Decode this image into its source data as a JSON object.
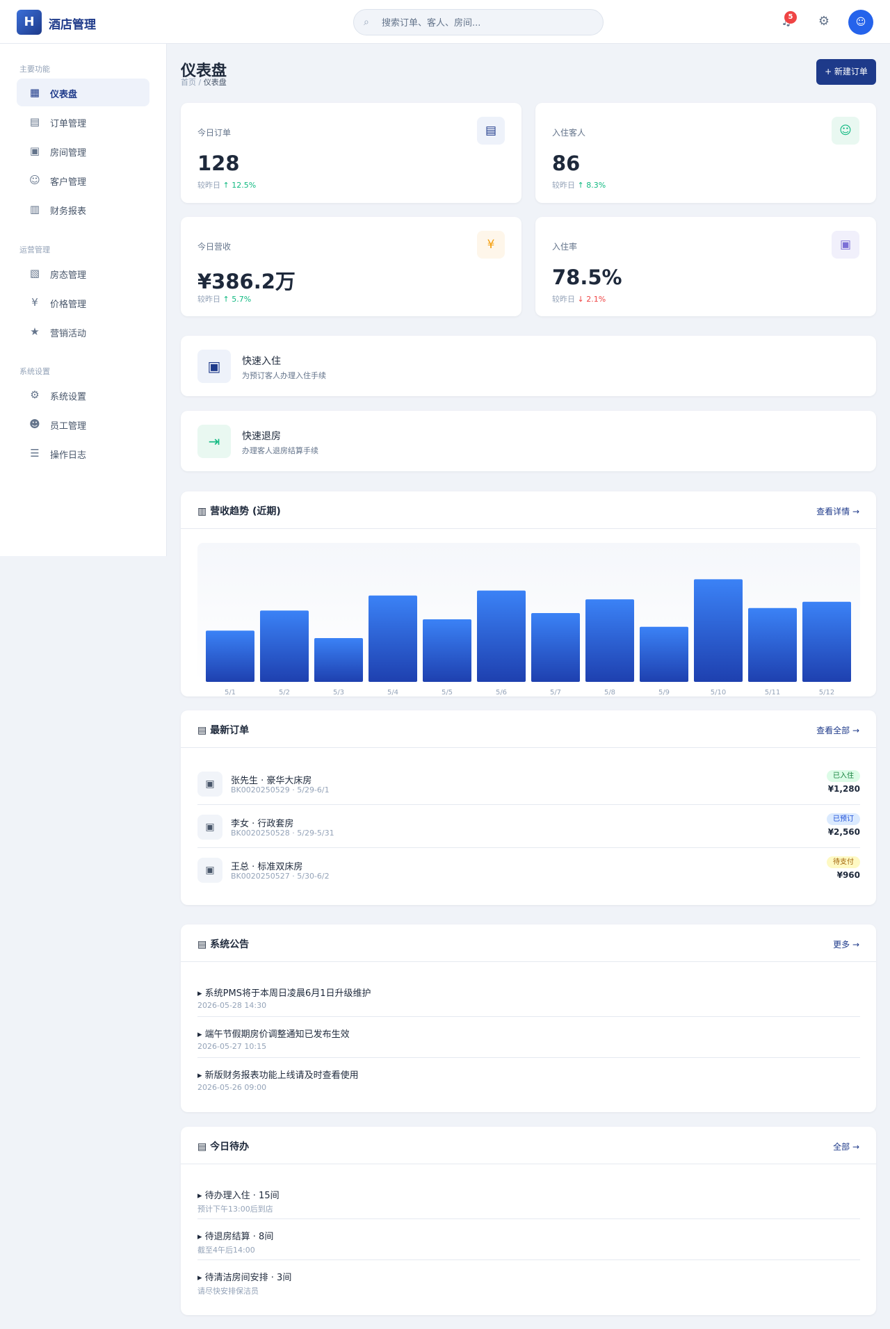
{
  "header": {
    "logo_letter": "H",
    "logo_text": "酒店管理",
    "search_placeholder": "搜索订单、客人、房间...",
    "search_icon": "search-icon",
    "notification_count": "5",
    "avatar_icon": "user-icon"
  },
  "sidebar": {
    "sections": [
      {
        "title": "主要功能",
        "items": [
          {
            "label": "仪表盘",
            "icon": "dashboard-icon",
            "glyph": "▦",
            "active": true
          },
          {
            "label": "订单管理",
            "icon": "orders-icon",
            "glyph": "▤"
          },
          {
            "label": "房间管理",
            "icon": "rooms-icon",
            "glyph": "▣"
          },
          {
            "label": "客户管理",
            "icon": "customers-icon",
            "glyph": "☺"
          },
          {
            "label": "财务报表",
            "icon": "finance-icon",
            "glyph": "▥"
          }
        ]
      },
      {
        "title": "运营管理",
        "items": [
          {
            "label": "房态管理",
            "icon": "room-status-icon",
            "glyph": "▧"
          },
          {
            "label": "价格管理",
            "icon": "price-icon",
            "glyph": "¥"
          },
          {
            "label": "营销活动",
            "icon": "marketing-icon",
            "glyph": "★"
          }
        ]
      },
      {
        "title": "系统设置",
        "items": [
          {
            "label": "系统设置",
            "icon": "gear-icon",
            "glyph": "⚙"
          },
          {
            "label": "员工管理",
            "icon": "staff-icon",
            "glyph": "☻"
          },
          {
            "label": "操作日志",
            "icon": "log-icon",
            "glyph": "☰"
          }
        ]
      }
    ]
  },
  "page": {
    "title": "仪表盘",
    "breadcrumb_home": "首页",
    "breadcrumb_sep": " / ",
    "breadcrumb_current": "仪表盘",
    "primary_button": "+ 新建订单"
  },
  "stats": [
    {
      "label": "今日订单",
      "value": "128",
      "change_prefix": "较昨日",
      "change": "↑ 12.5%",
      "trend": "up",
      "icon": "orders-icon",
      "glyph": "▤",
      "icon_bg": "#eef2fa",
      "icon_color": "#1e3a8a"
    },
    {
      "label": "入住客人",
      "value": "86",
      "change_prefix": "较昨日",
      "change": "↑ 8.3%",
      "trend": "up",
      "icon": "guests-icon",
      "glyph": "☺",
      "icon_bg": "#e9f8f1",
      "icon_color": "#10b981"
    },
    {
      "label": "今日营收",
      "value": "¥386.2万",
      "change_prefix": "较昨日",
      "change": "↑ 5.7%",
      "trend": "up",
      "icon": "revenue-icon",
      "glyph": "¥",
      "icon_bg": "#fef6ea",
      "icon_color": "#f59e0b"
    },
    {
      "label": "入住率",
      "value": "78.5%",
      "change_prefix": "较昨日",
      "change": "↓ 2.1%",
      "trend": "down",
      "icon": "occupancy-icon",
      "glyph": "▣",
      "icon_bg": "#f1f0fb",
      "icon_color": "#7c6fd6"
    }
  ],
  "quick_actions": [
    {
      "title": "快速入住",
      "subtitle": "为预订客人办理入住手续",
      "icon": "check-in-icon",
      "glyph": "▣",
      "icon_bg": "#eef2fa",
      "icon_color": "#1e3a8a"
    },
    {
      "title": "快速退房",
      "subtitle": "办理客人退房结算手续",
      "icon": "check-out-icon",
      "glyph": "⇥",
      "icon_bg": "#e9f8f1",
      "icon_color": "#10b981"
    }
  ],
  "revenue_panel": {
    "title": "▥ 营收趋势 (近期)",
    "link": "查看详情 →"
  },
  "chart_data": {
    "type": "bar",
    "categories": [
      "5/1",
      "5/2",
      "5/3",
      "5/4",
      "5/5",
      "5/6",
      "5/7",
      "5/8",
      "5/9",
      "5/10",
      "5/11",
      "5/12"
    ],
    "values": [
      41,
      57,
      35,
      69,
      50,
      73,
      55,
      66,
      44,
      82,
      59,
      64
    ],
    "ylim": [
      0,
      100
    ],
    "title": "",
    "xlabel": "",
    "ylabel": "",
    "grid": false,
    "legend": "none",
    "bar_color_top": "#3b82f6",
    "bar_color_bottom": "#1e40af"
  },
  "orders_panel": {
    "title": "▤ 最新订单",
    "link": "查看全部 →",
    "items": [
      {
        "title": "张先生 · 豪华大床房",
        "sub": "BK0020250529 · 5/29-6/1",
        "status": "已入住",
        "status_bg": "#dcfce7",
        "status_color": "#15803d",
        "amount": "¥1,280",
        "icon": "bed-icon",
        "glyph": "▣"
      },
      {
        "title": "李女 · 行政套房",
        "sub": "BK0020250528 · 5/29-5/31",
        "status": "已预订",
        "status_bg": "#dbeafe",
        "status_color": "#1d4ed8",
        "amount": "¥2,560",
        "icon": "bed-icon",
        "glyph": "▣"
      },
      {
        "title": "王总 · 标准双床房",
        "sub": "BK0020250527 · 5/30-6/2",
        "status": "待支付",
        "status_bg": "#fef9c3",
        "status_color": "#a16207",
        "amount": "¥960",
        "icon": "bed-icon",
        "glyph": "▣"
      }
    ]
  },
  "announcements_panel": {
    "title": "▤ 系统公告",
    "link": "更多 →",
    "items": [
      {
        "title": "▸ 系统PMS将于本周日凌晨6月1日升级维护",
        "time": "2026-05-28 14:30"
      },
      {
        "title": "▸ 端午节假期房价调整通知已发布生效",
        "time": "2026-05-27 10:15"
      },
      {
        "title": "▸ 新版财务报表功能上线请及时查看使用",
        "time": "2026-05-26 09:00"
      }
    ]
  },
  "tasks_panel": {
    "title": "▤ 今日待办",
    "link": "全部 →",
    "items": [
      {
        "title": "▸ 待办理入住 · 15间",
        "time": "预计下午13:00后到店"
      },
      {
        "title": "▸ 待退房结算 · 8间",
        "time": "截至4午后14:00"
      },
      {
        "title": "▸ 待清洁房间安排 · 3间",
        "time": "请尽快安排保洁员"
      }
    ]
  }
}
